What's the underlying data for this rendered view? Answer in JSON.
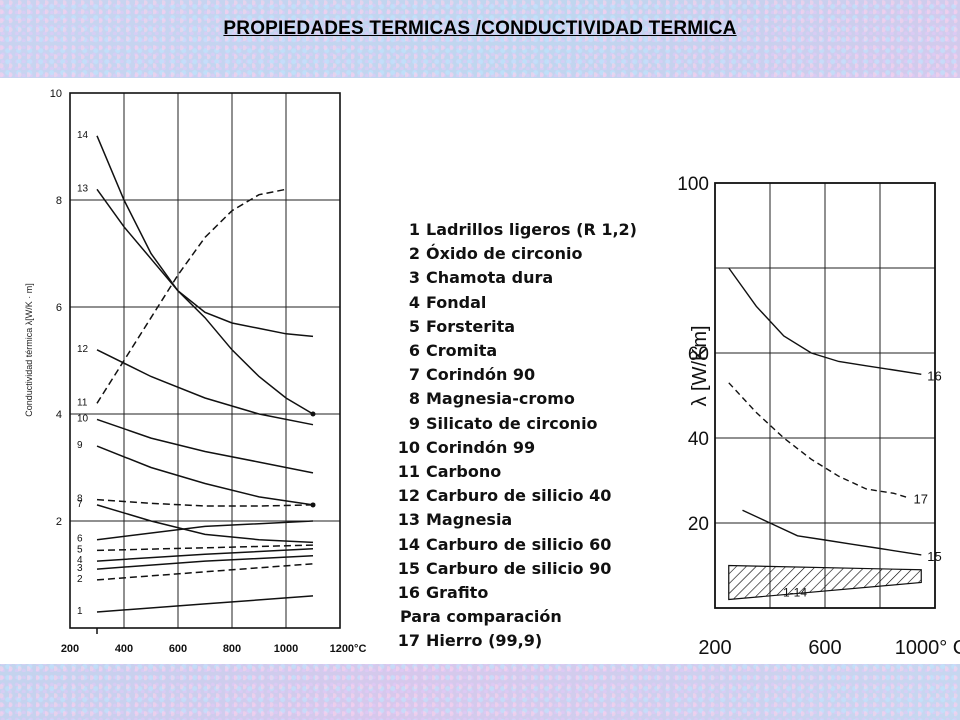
{
  "page": {
    "title": "PROPIEDADES TERMICAS /CONDUCTIVIDAD TERMICA"
  },
  "legend": {
    "items": [
      {
        "num": "1",
        "label": "Ladrillos ligeros (R 1,2)"
      },
      {
        "num": "2",
        "label": "Óxido de circonio"
      },
      {
        "num": "3",
        "label": "Chamota dura"
      },
      {
        "num": "4",
        "label": "Fondal"
      },
      {
        "num": "5",
        "label": "Forsterita"
      },
      {
        "num": "6",
        "label": "Cromita"
      },
      {
        "num": "7",
        "label": "Corindón 90"
      },
      {
        "num": "8",
        "label": "Magnesia-cromo"
      },
      {
        "num": "9",
        "label": "Silicato de circonio"
      },
      {
        "num": "10",
        "label": "Corindón 99"
      },
      {
        "num": "11",
        "label": "Carbono"
      },
      {
        "num": "12",
        "label": "Carburo de silicio 40"
      },
      {
        "num": "13",
        "label": "Magnesia"
      },
      {
        "num": "14",
        "label": "Carburo de silicio 60"
      },
      {
        "num": "15",
        "label": "Carburo de silicio 90"
      },
      {
        "num": "16",
        "label": "Grafito"
      }
    ],
    "comparison_header": "Para comparación",
    "comparison_item": {
      "num": "17",
      "label": "Hierro (99,9)"
    }
  },
  "chart_data": [
    {
      "type": "line",
      "ylabel": "Conductividad térmica λ[W/K · m]",
      "xlabel": "",
      "x_unit_label": "1200°C",
      "x_ticks": [
        "200",
        "400",
        "600",
        "800",
        "1000"
      ],
      "y_ticks": [
        "2",
        "4",
        "6",
        "8",
        "10"
      ],
      "xlim": [
        200,
        1200
      ],
      "ylim": [
        0,
        10
      ],
      "grid": true,
      "series": [
        {
          "name": "1",
          "style": "solid",
          "points": [
            [
              300,
              0.3
            ],
            [
              700,
              0.45
            ],
            [
              1100,
              0.6
            ]
          ]
        },
        {
          "name": "2",
          "style": "dashed",
          "points": [
            [
              300,
              0.9
            ],
            [
              700,
              1.05
            ],
            [
              1100,
              1.2
            ]
          ]
        },
        {
          "name": "3",
          "style": "solid",
          "points": [
            [
              300,
              1.1
            ],
            [
              700,
              1.25
            ],
            [
              1100,
              1.35
            ]
          ]
        },
        {
          "name": "4",
          "style": "solid",
          "points": [
            [
              300,
              1.25
            ],
            [
              700,
              1.38
            ],
            [
              1100,
              1.48
            ]
          ]
        },
        {
          "name": "5",
          "style": "dashed",
          "points": [
            [
              300,
              1.45
            ],
            [
              700,
              1.5
            ],
            [
              1100,
              1.55
            ]
          ]
        },
        {
          "name": "6",
          "style": "solid",
          "points": [
            [
              300,
              1.65
            ],
            [
              700,
              1.9
            ],
            [
              1100,
              2.0
            ]
          ]
        },
        {
          "name": "7",
          "style": "solid",
          "points": [
            [
              300,
              2.3
            ],
            [
              500,
              2.0
            ],
            [
              700,
              1.75
            ],
            [
              900,
              1.65
            ],
            [
              1100,
              1.6
            ]
          ]
        },
        {
          "name": "8",
          "style": "dashed",
          "points": [
            [
              300,
              2.4
            ],
            [
              500,
              2.33
            ],
            [
              700,
              2.28
            ],
            [
              900,
              2.28
            ],
            [
              1100,
              2.3
            ]
          ]
        },
        {
          "name": "9",
          "style": "solid",
          "points": [
            [
              300,
              3.4
            ],
            [
              500,
              3.0
            ],
            [
              700,
              2.7
            ],
            [
              900,
              2.45
            ],
            [
              1100,
              2.3
            ]
          ]
        },
        {
          "name": "10",
          "style": "solid",
          "points": [
            [
              300,
              3.9
            ],
            [
              500,
              3.55
            ],
            [
              700,
              3.3
            ],
            [
              900,
              3.1
            ],
            [
              1100,
              2.9
            ]
          ]
        },
        {
          "name": "11",
          "style": "dashed",
          "points": [
            [
              300,
              4.2
            ],
            [
              400,
              5.0
            ],
            [
              500,
              5.8
            ],
            [
              600,
              6.6
            ],
            [
              700,
              7.3
            ],
            [
              800,
              7.8
            ],
            [
              900,
              8.1
            ],
            [
              1000,
              8.2
            ]
          ]
        },
        {
          "name": "12",
          "style": "solid",
          "points": [
            [
              300,
              5.2
            ],
            [
              500,
              4.7
            ],
            [
              700,
              4.3
            ],
            [
              900,
              4.0
            ],
            [
              1100,
              3.8
            ]
          ]
        },
        {
          "name": "13",
          "style": "solid",
          "points": [
            [
              300,
              8.2
            ],
            [
              400,
              7.5
            ],
            [
              500,
              6.9
            ],
            [
              600,
              6.3
            ],
            [
              700,
              5.8
            ],
            [
              800,
              5.2
            ],
            [
              900,
              4.7
            ],
            [
              1000,
              4.3
            ],
            [
              1100,
              4.0
            ]
          ]
        },
        {
          "name": "14",
          "style": "solid",
          "points": [
            [
              300,
              9.2
            ],
            [
              400,
              8.0
            ],
            [
              500,
              7.0
            ],
            [
              600,
              6.3
            ],
            [
              700,
              5.9
            ],
            [
              800,
              5.7
            ],
            [
              900,
              5.6
            ],
            [
              1000,
              5.5
            ],
            [
              1100,
              5.45
            ]
          ]
        }
      ]
    },
    {
      "type": "line",
      "ylabel": "λ [W/Km]",
      "xlabel": "",
      "x_ticks": [
        "200",
        "600",
        "1000° C"
      ],
      "y_ticks": [
        "20",
        "40",
        "60",
        "100"
      ],
      "xlim": [
        200,
        1000
      ],
      "ylim": [
        0,
        100
      ],
      "grid": true,
      "series": [
        {
          "name": "16",
          "style": "solid",
          "points": [
            [
              250,
              80
            ],
            [
              350,
              71
            ],
            [
              450,
              64
            ],
            [
              550,
              60
            ],
            [
              650,
              58
            ],
            [
              750,
              57
            ],
            [
              850,
              56
            ],
            [
              950,
              55
            ]
          ]
        },
        {
          "name": "17",
          "style": "dashed",
          "points": [
            [
              250,
              53
            ],
            [
              350,
              46
            ],
            [
              450,
              40
            ],
            [
              550,
              35
            ],
            [
              650,
              31
            ],
            [
              750,
              28
            ],
            [
              850,
              27
            ],
            [
              900,
              26
            ]
          ]
        },
        {
          "name": "15",
          "style": "solid",
          "points": [
            [
              300,
              23
            ],
            [
              400,
              20
            ],
            [
              500,
              17
            ],
            [
              600,
              16
            ],
            [
              700,
              15
            ],
            [
              800,
              14
            ],
            [
              900,
              13
            ],
            [
              950,
              12.5
            ]
          ]
        }
      ],
      "bands": [
        {
          "name": "1-14",
          "x": [
            250,
            950
          ],
          "y_low": [
            2,
            6
          ],
          "y_high": [
            10,
            9
          ]
        }
      ]
    }
  ]
}
